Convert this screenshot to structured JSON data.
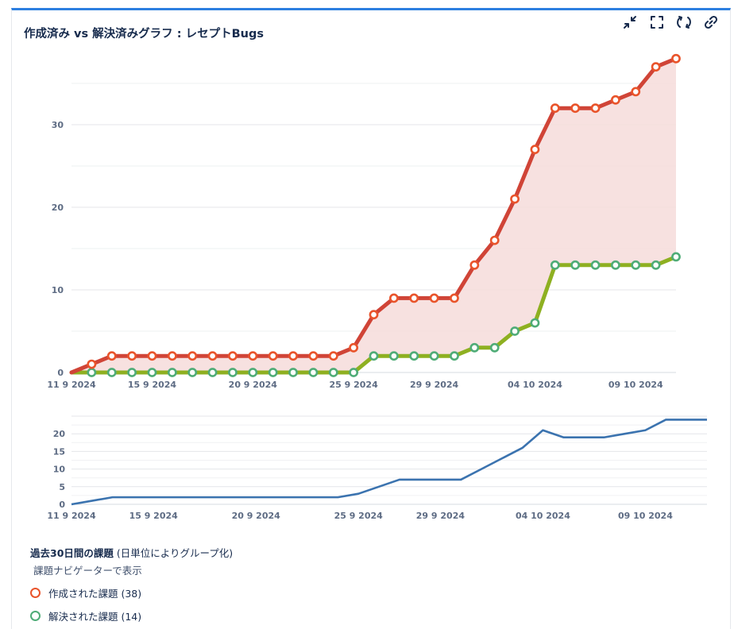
{
  "gadget": {
    "title": "作成済み vs 解決済みグラフ : レセプトBugs",
    "toolbar": [
      {
        "name": "minimize-button",
        "icon": "minimize-icon"
      },
      {
        "name": "fullscreen-button",
        "icon": "fullscreen-icon"
      },
      {
        "name": "refresh-button",
        "icon": "refresh-icon"
      },
      {
        "name": "link-button",
        "icon": "link-icon"
      }
    ]
  },
  "chart_data": [
    {
      "type": "line",
      "x": [
        "11 9 2024",
        "12 9 2024",
        "13 9 2024",
        "14 9 2024",
        "15 9 2024",
        "16 9 2024",
        "17 9 2024",
        "18 9 2024",
        "19 9 2024",
        "20 9 2024",
        "21 9 2024",
        "22 9 2024",
        "23 9 2024",
        "24 9 2024",
        "25 9 2024",
        "26 9 2024",
        "27 9 2024",
        "28 9 2024",
        "29 9 2024",
        "30 9 2024",
        "01 10 2024",
        "02 10 2024",
        "03 10 2024",
        "04 10 2024",
        "05 10 2024",
        "06 10 2024",
        "07 10 2024",
        "08 10 2024",
        "09 10 2024",
        "10 10 2024",
        "11 10 2024"
      ],
      "x_tick_labels": [
        "11 9 2024",
        "15 9 2024",
        "20 9 2024",
        "25 9 2024",
        "29 9 2024",
        "04 10 2024",
        "09 10 2024"
      ],
      "series": [
        {
          "name": "作成された課題",
          "color": "#d04437",
          "values": [
            0,
            1,
            2,
            2,
            2,
            2,
            2,
            2,
            2,
            2,
            2,
            2,
            2,
            2,
            3,
            7,
            9,
            9,
            9,
            9,
            13,
            16,
            21,
            27,
            32,
            32,
            32,
            33,
            34,
            37,
            38
          ]
        },
        {
          "name": "解決された課題",
          "color": "#8eb021",
          "values": [
            0,
            0,
            0,
            0,
            0,
            0,
            0,
            0,
            0,
            0,
            0,
            0,
            0,
            0,
            0,
            2,
            2,
            2,
            2,
            2,
            3,
            3,
            5,
            6,
            13,
            13,
            13,
            13,
            13,
            13,
            14
          ]
        }
      ],
      "fill_between_color": "#f6dcdb",
      "y_ticks": [
        0,
        10,
        20,
        30
      ],
      "ylim": [
        0,
        40
      ],
      "grid": true
    },
    {
      "type": "line",
      "x": [
        "11 9 2024",
        "12 9 2024",
        "13 9 2024",
        "14 9 2024",
        "15 9 2024",
        "16 9 2024",
        "17 9 2024",
        "18 9 2024",
        "19 9 2024",
        "20 9 2024",
        "21 9 2024",
        "22 9 2024",
        "23 9 2024",
        "24 9 2024",
        "25 9 2024",
        "26 9 2024",
        "27 9 2024",
        "28 9 2024",
        "29 9 2024",
        "30 9 2024",
        "01 10 2024",
        "02 10 2024",
        "03 10 2024",
        "04 10 2024",
        "05 10 2024",
        "06 10 2024",
        "07 10 2024",
        "08 10 2024",
        "09 10 2024",
        "10 10 2024",
        "11 10 2024"
      ],
      "x_tick_labels": [
        "11 9 2024",
        "15 9 2024",
        "20 9 2024",
        "25 9 2024",
        "29 9 2024",
        "04 10 2024",
        "09 10 2024"
      ],
      "series": [
        {
          "color": "#3b73af",
          "values": [
            0,
            1,
            2,
            2,
            2,
            2,
            2,
            2,
            2,
            2,
            2,
            2,
            2,
            2,
            3,
            5,
            7,
            7,
            7,
            7,
            10,
            13,
            16,
            21,
            19,
            19,
            19,
            20,
            21,
            24,
            24
          ]
        }
      ],
      "y_ticks": [
        0,
        5,
        10,
        15,
        20
      ],
      "ylim": [
        0,
        25
      ],
      "grid": true
    }
  ],
  "legend": {
    "heading_bold": "過去30日間の課題",
    "heading_note": " (日単位によりグループ化)",
    "link": "課題ナビゲーターで表示",
    "items": [
      {
        "label": "作成された課題 (38)",
        "color": "#e9542b"
      },
      {
        "label": "解決された課題 (14)",
        "color": "#4fac77"
      }
    ]
  }
}
